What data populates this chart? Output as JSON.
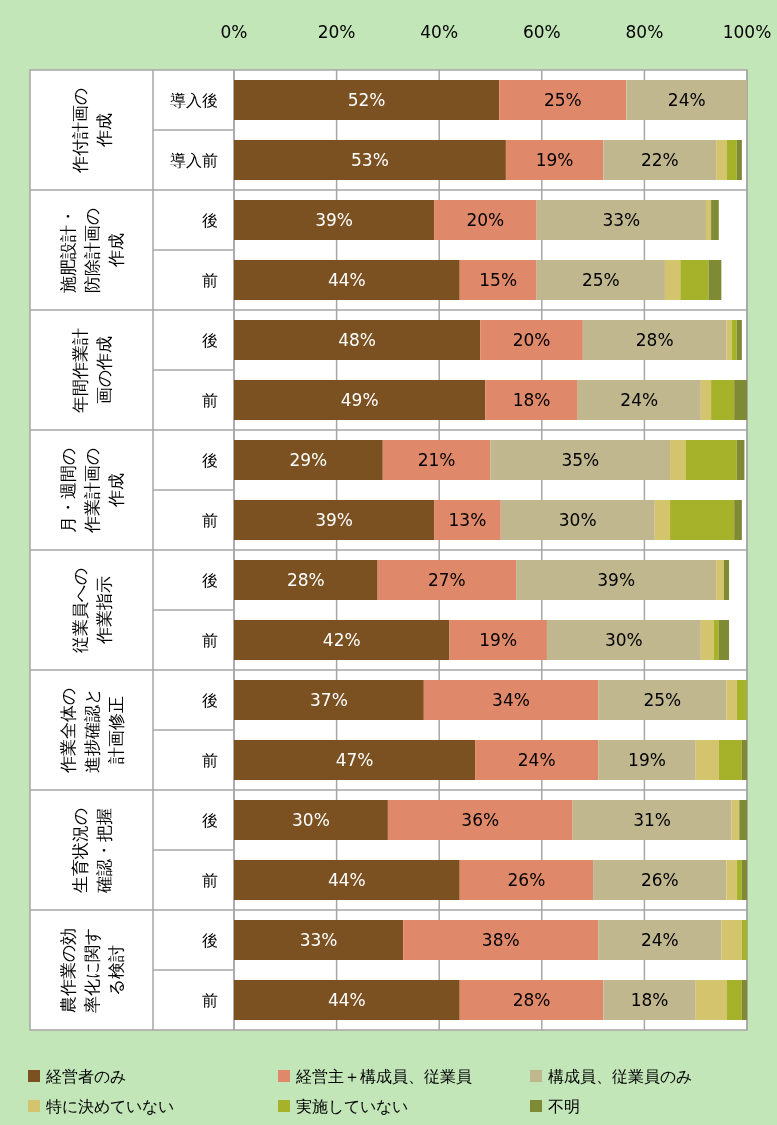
{
  "chart_data": {
    "type": "bar",
    "orientation": "horizontal",
    "stacked": true,
    "grid": "x",
    "legend": "bottom",
    "categories": [
      "導入後",
      "導入前",
      "後",
      "前",
      "後",
      "前",
      "後",
      "前",
      "後",
      "前",
      "後",
      "前",
      "後",
      "前",
      "後",
      "前"
    ],
    "annotations": [
      "作付計画の作成",
      "施肥設計・防除計画の作成",
      "年間作業計画の作成",
      "月・週間の作業計画の作成",
      "従業員への作業指示",
      "作業全体の進捗確認と計画修正",
      "生育状況の確認・把握",
      "農作業の効率化に関する検討"
    ],
    "xlim": [
      0,
      100
    ],
    "xticks": [
      {
        "value": 0,
        "label": "0%"
      },
      {
        "value": 20,
        "label": "20%"
      },
      {
        "value": 40,
        "label": "40%"
      },
      {
        "value": 60,
        "label": "60%"
      },
      {
        "value": 80,
        "label": "80%"
      },
      {
        "value": 100,
        "label": "100%"
      }
    ],
    "series": [
      {
        "name": "経営者のみ",
        "color": "#7b5122",
        "values": [
          51.7,
          53,
          39,
          44,
          48,
          49,
          29,
          39,
          28,
          42,
          37,
          47,
          30,
          44,
          33,
          44
        ],
        "value_labels": [
          "52%",
          "53%",
          "39%",
          "44%",
          "48%",
          "49%",
          "29%",
          "39%",
          "28%",
          "42%",
          "37%",
          "47%",
          "30%",
          "44%",
          "33%",
          "44%"
        ]
      },
      {
        "name": "経営主＋構成員、従業員",
        "color": "#e0896a",
        "values": [
          24.8,
          19,
          20,
          15,
          20,
          18,
          21,
          13,
          27,
          19,
          34,
          24,
          36,
          26,
          38,
          28
        ],
        "value_labels": [
          "25%",
          "19%",
          "20%",
          "15%",
          "20%",
          "18%",
          "21%",
          "13%",
          "27%",
          "19%",
          "34%",
          "24%",
          "36%",
          "26%",
          "38%",
          "28%"
        ]
      },
      {
        "name": "構成員、従業員のみ",
        "color": "#c0b78f",
        "values": [
          23.5,
          22,
          33,
          25,
          28,
          24,
          35,
          30,
          39,
          30,
          25,
          19,
          31,
          26,
          24,
          18
        ],
        "value_labels": [
          "24%",
          "22%",
          "33%",
          "25%",
          "28%",
          "24%",
          "35%",
          "30%",
          "39%",
          "30%",
          "25%",
          "19%",
          "31%",
          "26%",
          "24%",
          "18%"
        ]
      },
      {
        "name": "特に決めていない",
        "color": "#d4c46e",
        "values": [
          0,
          2,
          1,
          3,
          1,
          2,
          3,
          3,
          1.5,
          2.5,
          2,
          4.5,
          1.5,
          2,
          4,
          6
        ]
      },
      {
        "name": "実施していない",
        "color": "#a6b22a",
        "values": [
          0,
          2,
          0,
          5.5,
          1,
          4.5,
          10,
          12.5,
          0,
          1,
          2,
          4.5,
          0,
          1,
          1,
          3
        ]
      },
      {
        "name": "不明",
        "color": "#7f8a35",
        "values": [
          0,
          1,
          1.5,
          2.5,
          1,
          2.5,
          1.5,
          1.5,
          1,
          2,
          0,
          1,
          1.5,
          1,
          0,
          1
        ]
      }
    ]
  }
}
